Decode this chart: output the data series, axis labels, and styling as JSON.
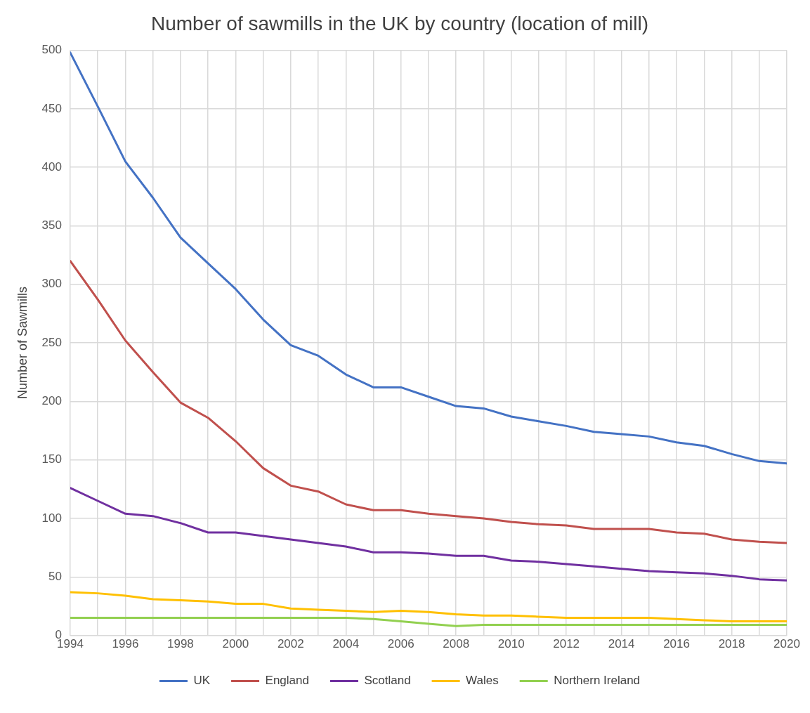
{
  "chart_data": {
    "type": "line",
    "title": "Number of sawmills in the UK by country (location of mill)",
    "ylabel": "Number of Sawmills",
    "x": [
      1994,
      1995,
      1996,
      1997,
      1998,
      1999,
      2000,
      2001,
      2002,
      2003,
      2004,
      2005,
      2006,
      2007,
      2008,
      2009,
      2010,
      2011,
      2012,
      2013,
      2014,
      2015,
      2016,
      2017,
      2018,
      2019,
      2020
    ],
    "xlim": [
      1994,
      2020
    ],
    "xticks": [
      1994,
      {
        "value": 1995,
        "label": null
      },
      1996,
      {
        "value": 1997,
        "label": null
      },
      1998,
      {
        "value": 1999,
        "label": null
      },
      2000,
      {
        "value": 2001,
        "label": null
      },
      2002,
      {
        "value": 2003,
        "label": null
      },
      2004,
      {
        "value": 2005,
        "label": null
      },
      2006,
      {
        "value": 2007,
        "label": null
      },
      2008,
      {
        "value": 2009,
        "label": null
      },
      2010,
      {
        "value": 2011,
        "label": null
      },
      2012,
      {
        "value": 2013,
        "label": null
      },
      2014,
      {
        "value": 2015,
        "label": null
      },
      2016,
      {
        "value": 2017,
        "label": null
      },
      2018,
      {
        "value": 2019,
        "label": null
      },
      2020
    ],
    "ylim": [
      0,
      500
    ],
    "yticks": [
      0,
      50,
      100,
      150,
      200,
      250,
      300,
      350,
      400,
      450,
      500
    ],
    "grid": true,
    "legend": "bottom",
    "marker": "none",
    "line_style": "solid",
    "series": [
      {
        "name": "UK",
        "color": "#4472c4",
        "values": [
          498,
          452,
          405,
          374,
          340,
          318,
          296,
          270,
          248,
          239,
          223,
          212,
          212,
          204,
          196,
          194,
          187,
          183,
          179,
          174,
          172,
          170,
          165,
          162,
          155,
          149,
          147
        ]
      },
      {
        "name": "England",
        "color": "#c0504d",
        "values": [
          320,
          287,
          252,
          225,
          199,
          186,
          166,
          143,
          128,
          123,
          112,
          107,
          107,
          104,
          102,
          100,
          97,
          95,
          94,
          91,
          91,
          91,
          88,
          87,
          82,
          80,
          79
        ]
      },
      {
        "name": "Scotland",
        "color": "#7030a0",
        "values": [
          126,
          115,
          104,
          102,
          96,
          88,
          88,
          85,
          82,
          79,
          76,
          71,
          71,
          70,
          68,
          68,
          64,
          63,
          61,
          59,
          57,
          55,
          54,
          53,
          51,
          48,
          47
        ]
      },
      {
        "name": "Wales",
        "color": "#ffc000",
        "values": [
          37,
          36,
          34,
          31,
          30,
          29,
          27,
          27,
          23,
          22,
          21,
          20,
          21,
          20,
          18,
          17,
          17,
          16,
          15,
          15,
          15,
          15,
          14,
          13,
          12,
          12,
          12
        ]
      },
      {
        "name": "Northern Ireland",
        "color": "#92d050",
        "values": [
          15,
          15,
          15,
          15,
          15,
          15,
          15,
          15,
          15,
          15,
          15,
          14,
          12,
          10,
          8,
          9,
          9,
          9,
          9,
          9,
          9,
          9,
          9,
          9,
          9,
          9,
          9
        ]
      }
    ]
  }
}
